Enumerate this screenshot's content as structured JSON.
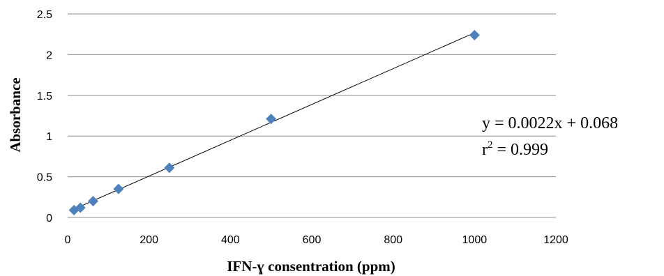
{
  "chart_data": {
    "type": "scatter",
    "title": "",
    "xlabel": "IFN-ɣ consentration (ppm)",
    "ylabel": "Absorbance",
    "xlim": [
      0,
      1200
    ],
    "ylim": [
      0,
      2.5
    ],
    "xticks": [
      "0",
      "200",
      "400",
      "600",
      "800",
      "1000",
      "1200"
    ],
    "yticks": [
      "0",
      "0.5",
      "1",
      "1.5",
      "2",
      "2.5"
    ],
    "grid": "horizontal",
    "legend": "none",
    "series": [
      {
        "marker": "diamond",
        "color": "#4f81bd",
        "x": [
          15.6,
          31.25,
          62.5,
          125,
          250,
          500,
          1000
        ],
        "y": [
          0.09,
          0.12,
          0.2,
          0.35,
          0.61,
          1.21,
          2.24
        ]
      }
    ],
    "trendline": {
      "type": "linear",
      "slope": 0.0022,
      "intercept": 0.068,
      "x_range": [
        15.6,
        1000
      ],
      "color": "#000000"
    },
    "annotations": {
      "equation": "y = 0.0022x + 0.068",
      "r_squared_prefix": "r",
      "r_squared_exponent": "2",
      "r_squared_value": " = 0.999"
    }
  }
}
